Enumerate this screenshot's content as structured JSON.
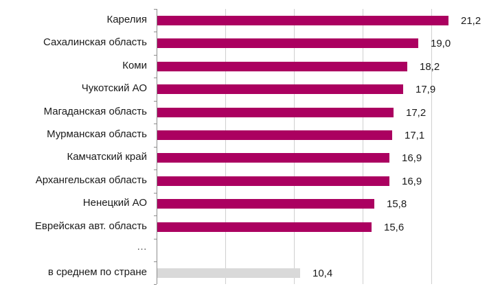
{
  "chart_data": {
    "type": "bar",
    "orientation": "horizontal",
    "title": "",
    "xlabel": "",
    "ylabel": "",
    "xlim": [
      0,
      24
    ],
    "grid": true,
    "gridlines_at": [
      5,
      10,
      15,
      20
    ],
    "categories": [
      "Карелия",
      "Сахалинская область",
      "Коми",
      "Чукотский АО",
      "Магаданская область",
      "Мурманская область",
      "Камчатский край",
      "Архангельская область",
      "Ненецкий АО",
      "Еврейская авт. область",
      "…",
      "в среднем по стране"
    ],
    "values": [
      21.2,
      19.0,
      18.2,
      17.9,
      17.2,
      17.1,
      16.9,
      16.9,
      15.8,
      15.6,
      null,
      10.4
    ],
    "value_labels": [
      "21,2",
      "19,0",
      "18,2",
      "17,9",
      "17,2",
      "17,1",
      "16,9",
      "16,9",
      "15,8",
      "15,6",
      "",
      "10,4"
    ],
    "colors": {
      "regions": "#AB0060",
      "average": "#D9D9D9",
      "grid": "#CFCFCF",
      "axis": "#8C8C8C"
    }
  }
}
